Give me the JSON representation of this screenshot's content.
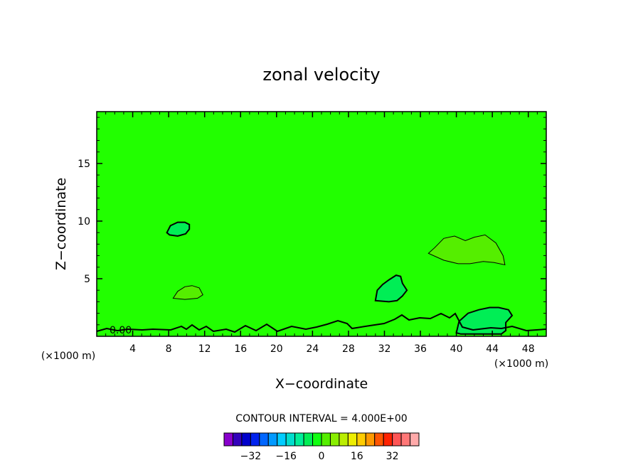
{
  "chart_data": {
    "type": "heatmap",
    "title": "zonal velocity",
    "xlabel": "X−coordinate",
    "ylabel": "Z−coordinate",
    "x_units_left": "(×1000 m)",
    "x_units_right": "(×1000 m)",
    "xlim": [
      0,
      50
    ],
    "ylim": [
      0,
      19.5
    ],
    "x_ticks": [
      4,
      8,
      12,
      16,
      20,
      24,
      28,
      32,
      36,
      40,
      44,
      48
    ],
    "x_tick_labels": [
      "4",
      "8",
      "12",
      "16",
      "20",
      "24",
      "28",
      "32",
      "36",
      "40",
      "44",
      "48"
    ],
    "y_ticks": [
      5,
      10,
      15
    ],
    "y_tick_labels": [
      "5",
      "10",
      "15"
    ],
    "background_value": 0,
    "background_color": "#22ff00",
    "contour_label": "0.00",
    "contour_interval_text": "CONTOUR INTERVAL = 4.000E+00",
    "features": [
      {
        "kind": "negative",
        "color": "#00ee55",
        "points": [
          [
            7.8,
            9.0
          ],
          [
            8.2,
            9.6
          ],
          [
            9.0,
            9.9
          ],
          [
            9.8,
            9.9
          ],
          [
            10.3,
            9.7
          ],
          [
            10.3,
            9.3
          ],
          [
            9.9,
            8.9
          ],
          [
            9.0,
            8.7
          ],
          [
            8.1,
            8.8
          ]
        ]
      },
      {
        "kind": "positive",
        "color": "#55ee00",
        "points": [
          [
            8.5,
            3.3
          ],
          [
            9.0,
            3.9
          ],
          [
            9.8,
            4.3
          ],
          [
            10.6,
            4.4
          ],
          [
            11.4,
            4.2
          ],
          [
            11.8,
            3.6
          ],
          [
            11.2,
            3.3
          ],
          [
            9.8,
            3.2
          ]
        ]
      },
      {
        "kind": "negative",
        "color": "#00ee55",
        "points": [
          [
            31.0,
            3.1
          ],
          [
            31.2,
            4.0
          ],
          [
            31.8,
            4.5
          ],
          [
            32.5,
            4.9
          ],
          [
            33.3,
            5.3
          ],
          [
            33.8,
            5.2
          ],
          [
            34.0,
            4.6
          ],
          [
            34.5,
            4.0
          ],
          [
            34.0,
            3.5
          ],
          [
            33.4,
            3.1
          ],
          [
            32.5,
            3.0
          ]
        ]
      },
      {
        "kind": "positive",
        "color": "#55ee00",
        "points": [
          [
            36.9,
            7.2
          ],
          [
            37.6,
            7.7
          ],
          [
            38.6,
            8.5
          ],
          [
            39.8,
            8.7
          ],
          [
            41.0,
            8.3
          ],
          [
            42.0,
            8.6
          ],
          [
            43.2,
            8.8
          ],
          [
            44.4,
            8.1
          ],
          [
            45.2,
            7.0
          ],
          [
            45.4,
            6.2
          ],
          [
            44.2,
            6.4
          ],
          [
            43.0,
            6.5
          ],
          [
            41.5,
            6.3
          ],
          [
            40.2,
            6.3
          ],
          [
            38.6,
            6.6
          ]
        ]
      },
      {
        "kind": "negative",
        "color": "#00ee55",
        "points": [
          [
            40.0,
            0.3
          ],
          [
            40.3,
            1.3
          ],
          [
            41.3,
            2.0
          ],
          [
            42.5,
            2.3
          ],
          [
            43.7,
            2.5
          ],
          [
            44.7,
            2.5
          ],
          [
            45.8,
            2.3
          ],
          [
            46.2,
            1.8
          ],
          [
            45.5,
            1.2
          ],
          [
            45.5,
            0.5
          ],
          [
            45.0,
            0.2
          ],
          [
            40.5,
            0.2
          ]
        ]
      }
    ],
    "colorbar": {
      "colors": [
        "#8800cc",
        "#3300bb",
        "#0000cc",
        "#0022ee",
        "#0066ff",
        "#0099ff",
        "#00ccff",
        "#00ddcc",
        "#00ee99",
        "#00ee55",
        "#11ff11",
        "#55ee00",
        "#88ee00",
        "#bbee00",
        "#eeee00",
        "#ffcc00",
        "#ff9900",
        "#ff5500",
        "#ff2200",
        "#ff5555",
        "#ff7777",
        "#ffaaaa"
      ],
      "tick_labels": [
        "−32",
        "−16",
        "0",
        "16",
        "32"
      ],
      "tick_values": [
        -32,
        -16,
        0,
        16,
        32
      ],
      "range": [
        -44,
        44
      ]
    }
  }
}
